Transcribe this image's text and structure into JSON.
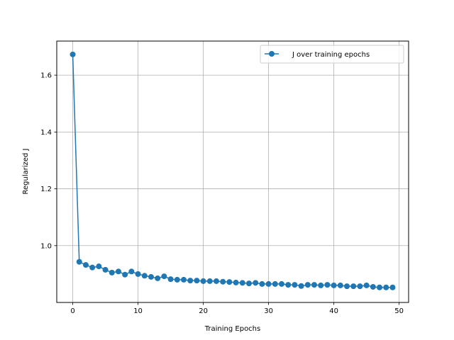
{
  "chart_data": {
    "type": "line",
    "xlabel": "Training Epochs",
    "ylabel": "Regularized J",
    "xlim": [
      -2.45,
      51.45
    ],
    "ylim": [
      0.8,
      1.72
    ],
    "xticks": [
      0,
      10,
      20,
      30,
      40,
      50
    ],
    "yticks": [
      1.0,
      1.2,
      1.4,
      1.6
    ],
    "ytick_labels": [
      "1.0",
      "1.2",
      "1.4",
      "1.6"
    ],
    "grid": true,
    "legend_position": "top-right",
    "series": [
      {
        "name": "J over training epochs",
        "color": "#1f77b4",
        "marker": "circle",
        "x": [
          0,
          1,
          2,
          3,
          4,
          5,
          6,
          7,
          8,
          9,
          10,
          11,
          12,
          13,
          14,
          15,
          16,
          17,
          18,
          19,
          20,
          21,
          22,
          23,
          24,
          25,
          26,
          27,
          28,
          29,
          30,
          31,
          32,
          33,
          34,
          35,
          36,
          37,
          38,
          39,
          40,
          41,
          42,
          43,
          44,
          45,
          46,
          47,
          48,
          49
        ],
        "y": [
          1.673,
          0.943,
          0.932,
          0.923,
          0.927,
          0.915,
          0.905,
          0.909,
          0.898,
          0.909,
          0.9,
          0.894,
          0.89,
          0.885,
          0.892,
          0.882,
          0.88,
          0.88,
          0.877,
          0.877,
          0.875,
          0.875,
          0.875,
          0.873,
          0.872,
          0.87,
          0.869,
          0.867,
          0.869,
          0.865,
          0.865,
          0.865,
          0.865,
          0.862,
          0.862,
          0.858,
          0.862,
          0.862,
          0.86,
          0.862,
          0.86,
          0.86,
          0.857,
          0.857,
          0.857,
          0.86,
          0.855,
          0.853,
          0.853,
          0.853
        ]
      }
    ]
  }
}
